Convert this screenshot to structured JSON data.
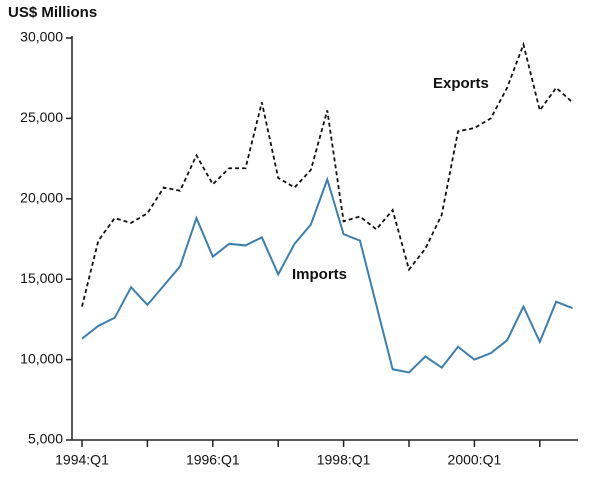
{
  "chart_data": {
    "type": "line",
    "y_label": "US$ Millions",
    "categories": [
      "1994:Q1",
      null,
      null,
      null,
      null,
      null,
      null,
      null,
      "1996:Q1",
      null,
      null,
      null,
      null,
      null,
      null,
      null,
      "1998:Q1",
      null,
      null,
      null,
      null,
      null,
      null,
      null,
      "2000:Q1",
      null,
      null,
      null,
      null,
      null,
      null
    ],
    "series": [
      {
        "name": "Exports",
        "color": "#111111",
        "dash": true,
        "values": [
          13300,
          17400,
          18800,
          18500,
          19100,
          20700,
          20500,
          22700,
          20900,
          21900,
          21900,
          26000,
          21300,
          20700,
          21800,
          25500,
          18600,
          18900,
          18100,
          19300,
          15600,
          16900,
          19000,
          24200,
          24400,
          25000,
          26900,
          29600,
          25500,
          26900,
          26000
        ]
      },
      {
        "name": "Imports",
        "color": "#3a7fb0",
        "dash": false,
        "values": [
          11300,
          12100,
          12600,
          14500,
          13400,
          14600,
          15800,
          18800,
          16400,
          17200,
          17100,
          17600,
          15300,
          17200,
          18400,
          21200,
          17800,
          17400,
          13400,
          9400,
          9200,
          10200,
          9500,
          10800,
          10000,
          10400,
          11200,
          13300,
          11100,
          13600,
          13200
        ]
      }
    ],
    "ylim": [
      5000,
      30000
    ],
    "yticks": [
      {
        "value": 5000,
        "label": "5,000"
      },
      {
        "value": 10000,
        "label": "10,000"
      },
      {
        "value": 15000,
        "label": "15,000"
      },
      {
        "value": 20000,
        "label": "20,000"
      },
      {
        "value": 25000,
        "label": "25,000"
      },
      {
        "value": 30000,
        "label": "30,000"
      }
    ]
  }
}
